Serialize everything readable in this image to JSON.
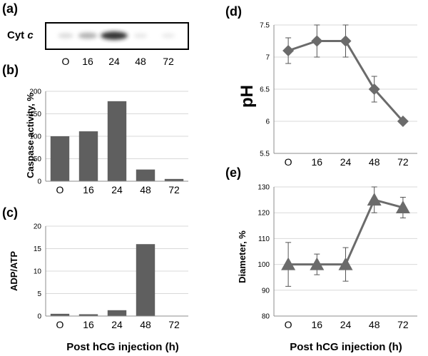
{
  "chart_data": [
    {
      "panel": "(a)",
      "type": "blot",
      "label_main": "Cyt",
      "label_italic": "c",
      "categories": [
        "O",
        "16",
        "24",
        "48",
        "72"
      ],
      "band_intensity": [
        0.15,
        0.4,
        0.9,
        0.05,
        0.03
      ]
    },
    {
      "panel": "(b)",
      "type": "bar",
      "ylabel": "Caspase activity, %",
      "categories": [
        "O",
        "16",
        "24",
        "48",
        "72"
      ],
      "values": [
        100,
        111,
        178,
        26,
        5
      ],
      "ylim": [
        0,
        200
      ],
      "yticks": [
        "0",
        "50",
        "100",
        "150",
        "200"
      ],
      "grid": true,
      "color": "#5f5f5f"
    },
    {
      "panel": "(c)",
      "type": "bar",
      "ylabel": "ADP/ATP",
      "xlabel": "Post hCG injection (h)",
      "categories": [
        "O",
        "16",
        "24",
        "48",
        "72"
      ],
      "values": [
        0.5,
        0.4,
        1.3,
        16,
        0
      ],
      "ylim": [
        0,
        20
      ],
      "yticks": [
        "0",
        "5",
        "10",
        "15",
        "20"
      ],
      "grid": true,
      "color": "#5f5f5f"
    },
    {
      "panel": "(d)",
      "type": "line",
      "ylabel": "pH",
      "categories": [
        "O",
        "16",
        "24",
        "48",
        "72"
      ],
      "values": [
        7.1,
        7.25,
        7.25,
        6.5,
        6.0
      ],
      "errors": [
        0.2,
        0.25,
        0.25,
        0.2,
        0
      ],
      "ylim": [
        5.5,
        7.5
      ],
      "yticks": [
        "5.5",
        "6",
        "6.5",
        "7",
        "7.5"
      ],
      "marker": "diamond",
      "grid": true,
      "color": "#6b6b6b"
    },
    {
      "panel": "(e)",
      "type": "line",
      "ylabel": "Diameter, %",
      "xlabel": "Post hCG injection (h)",
      "categories": [
        "O",
        "16",
        "24",
        "48",
        "72"
      ],
      "values": [
        100,
        100,
        100,
        125,
        122
      ],
      "errors": [
        8.5,
        4,
        6.5,
        5,
        4
      ],
      "ylim": [
        80,
        130
      ],
      "yticks": [
        "80",
        "90",
        "100",
        "110",
        "120",
        "130"
      ],
      "marker": "triangle",
      "grid": true,
      "color": "#6b6b6b"
    }
  ]
}
